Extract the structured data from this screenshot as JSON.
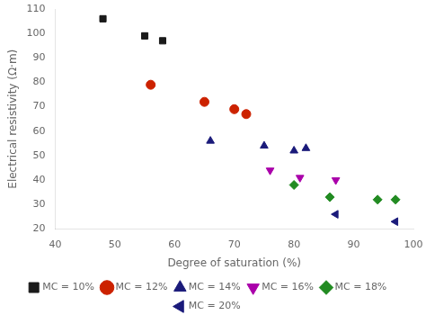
{
  "chart_data": {
    "type": "scatter",
    "xlabel": "Degree of saturation (%)",
    "ylabel": "Electrical resistivity (Ω·m)",
    "series": [
      {
        "name": "MC = 10%",
        "color": "#1a1a1a",
        "marker": "square",
        "x": [
          48,
          55,
          58
        ],
        "values": [
          106,
          99,
          97
        ]
      },
      {
        "name": "MC = 12%",
        "color": "#cc2200",
        "marker": "circle",
        "x": [
          56,
          65,
          70,
          72
        ],
        "values": [
          79,
          72,
          69,
          67
        ]
      },
      {
        "name": "MC = 14%",
        "color": "#1a1a7a",
        "marker": "triangle_up",
        "x": [
          66,
          75,
          80,
          82
        ],
        "values": [
          56,
          54,
          52,
          53
        ]
      },
      {
        "name": "MC = 16%",
        "color": "#aa00aa",
        "marker": "triangle_down",
        "x": [
          76,
          81,
          87
        ],
        "values": [
          44,
          41,
          40
        ]
      },
      {
        "name": "MC = 18%",
        "color": "#228B22",
        "marker": "diamond",
        "x": [
          80,
          86,
          94,
          97
        ],
        "values": [
          38,
          33,
          32,
          32
        ]
      },
      {
        "name": "MC = 20%",
        "color": "#1a1a7a",
        "marker": "triangle_left",
        "x": [
          87,
          97
        ],
        "values": [
          26,
          23
        ]
      }
    ],
    "xlim": [
      40,
      100
    ],
    "ylim": [
      20,
      110
    ],
    "xticks": [
      40,
      50,
      60,
      70,
      80,
      90,
      100
    ],
    "yticks": [
      20,
      30,
      40,
      50,
      60,
      70,
      80,
      90,
      100,
      110
    ],
    "grid": false,
    "legend": "bottom"
  }
}
